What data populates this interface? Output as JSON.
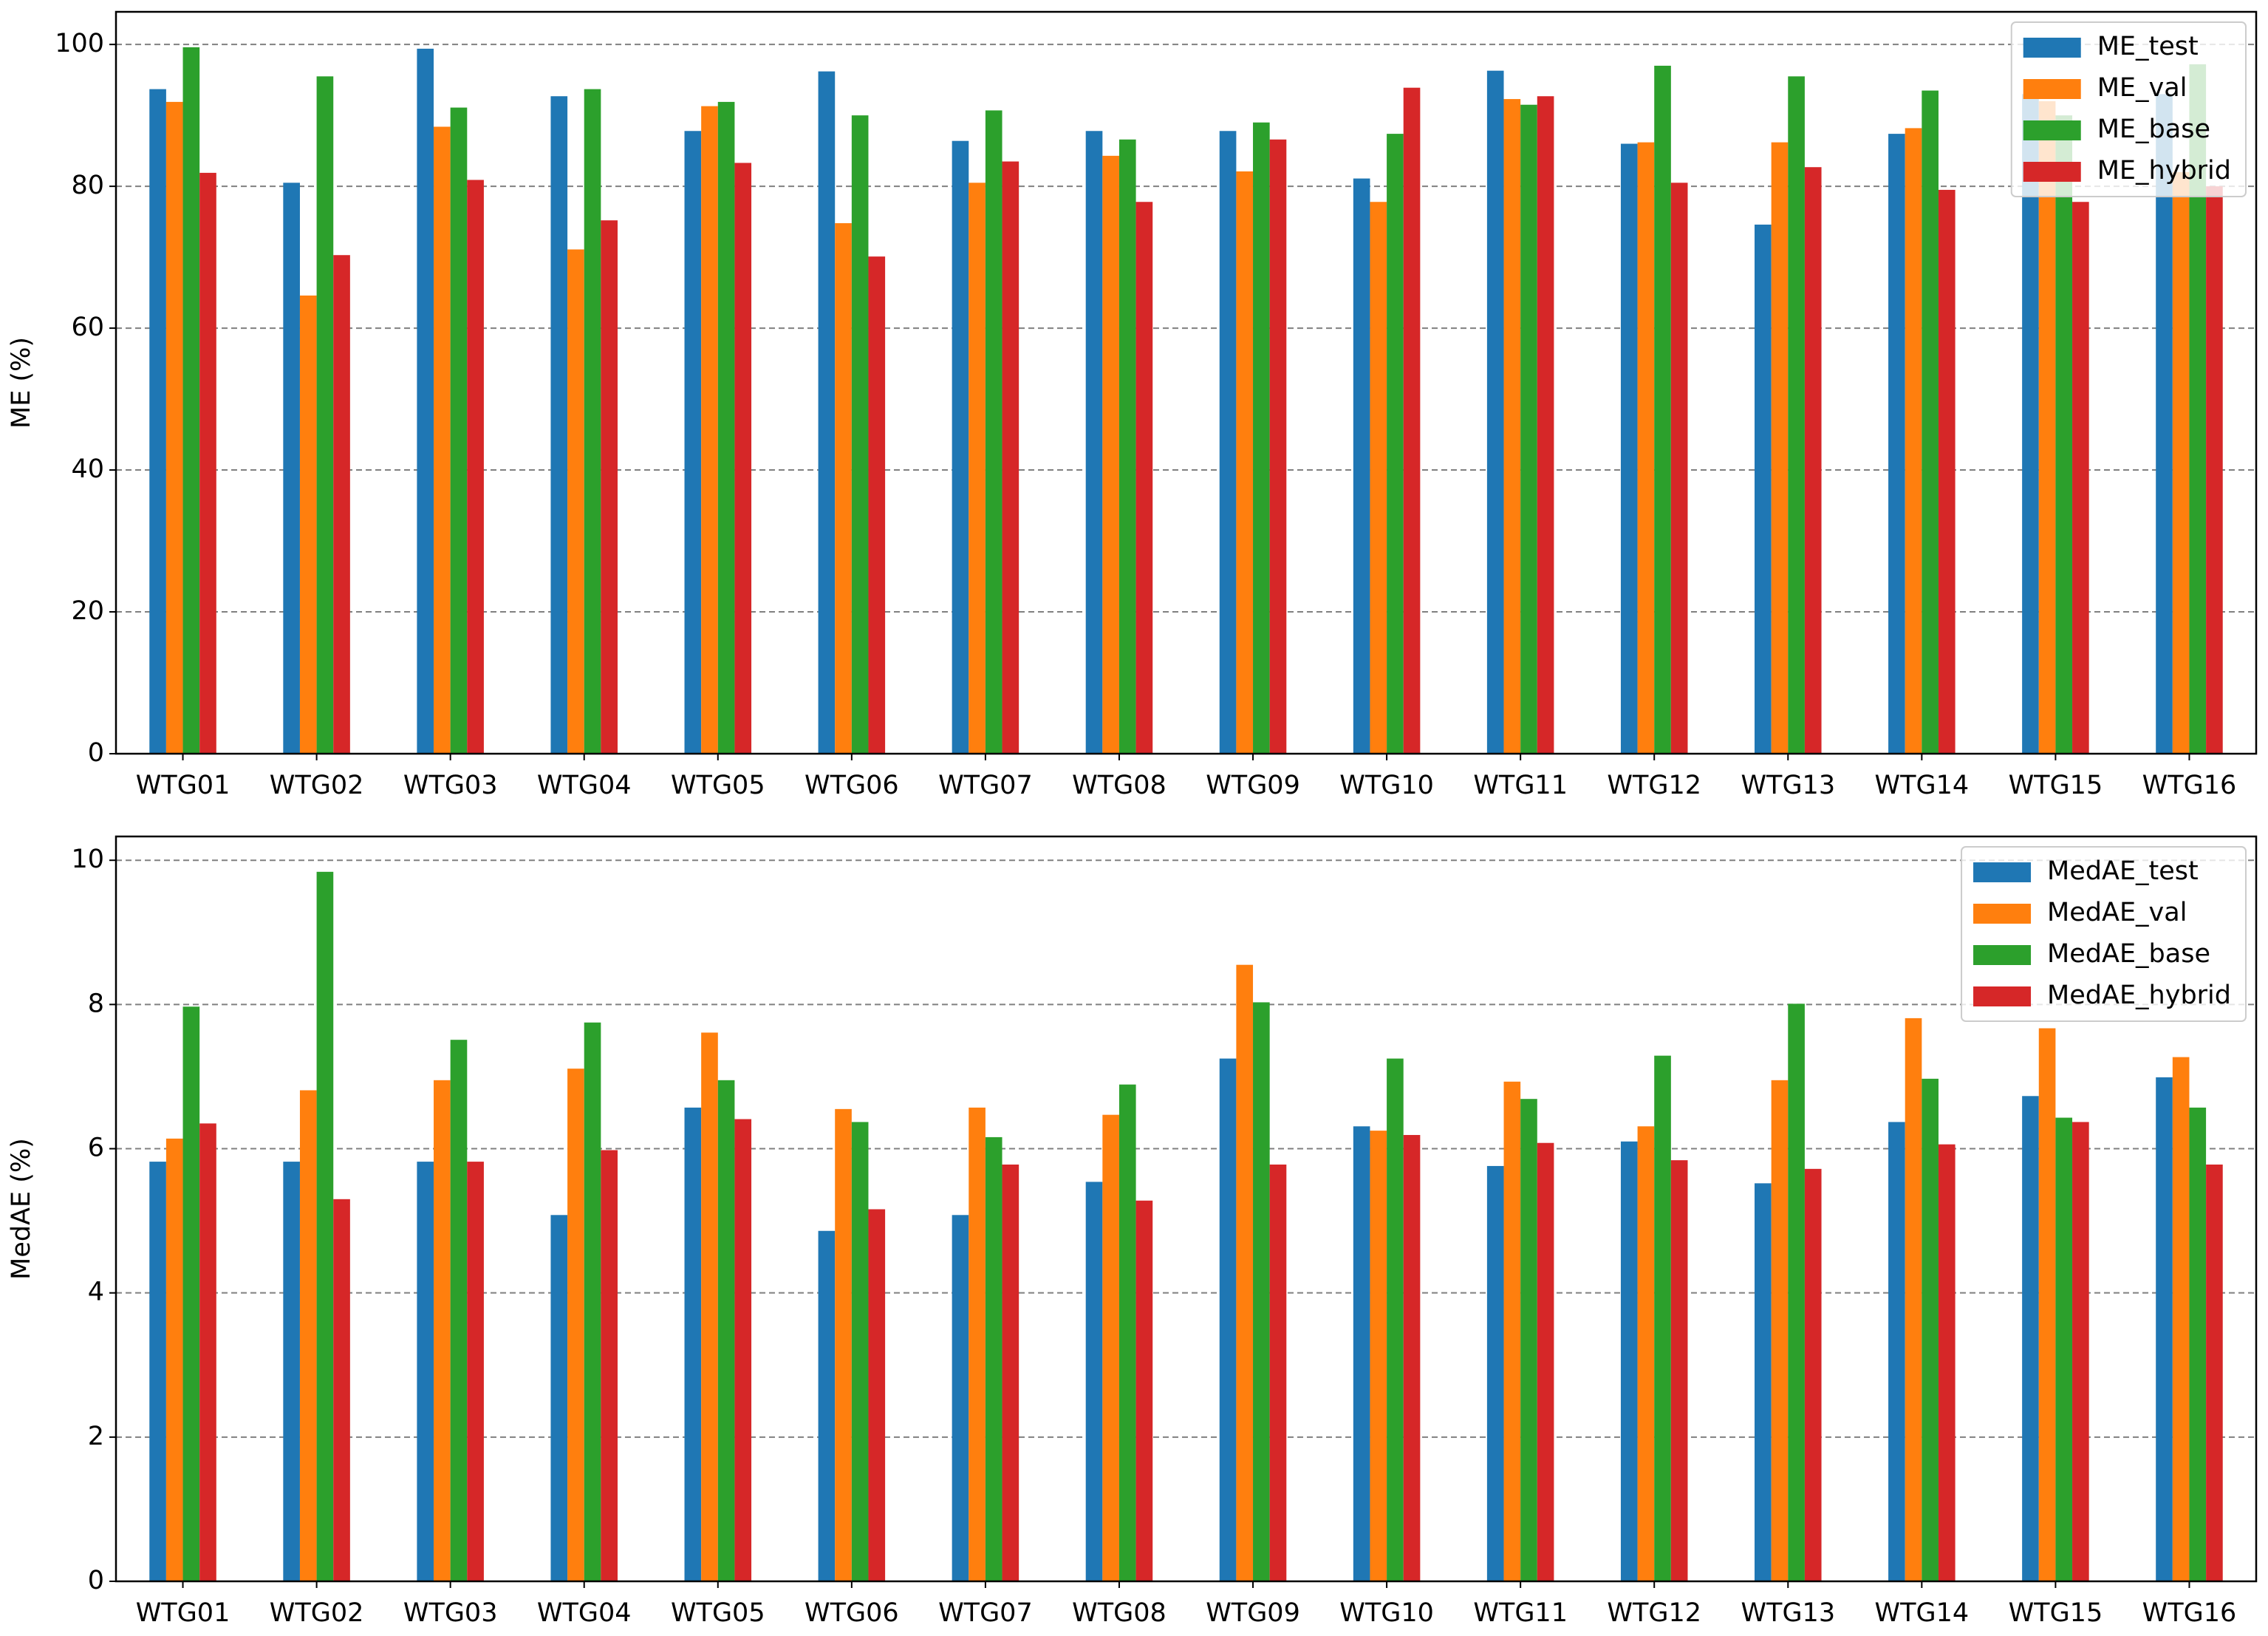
{
  "chart_data": [
    {
      "type": "bar",
      "ylabel": "ME (%)",
      "categories": [
        "WTG01",
        "WTG02",
        "WTG03",
        "WTG04",
        "WTG05",
        "WTG06",
        "WTG07",
        "WTG08",
        "WTG09",
        "WTG10",
        "WTG11",
        "WTG12",
        "WTG13",
        "WTG14",
        "WTG15",
        "WTG16"
      ],
      "series": [
        {
          "name": "ME_test",
          "color": "#1f77b4",
          "values": [
            93.7,
            80.5,
            99.4,
            92.7,
            87.8,
            96.2,
            86.4,
            87.8,
            87.8,
            81.1,
            96.3,
            86.0,
            74.6,
            87.4,
            93.0,
            93.0
          ]
        },
        {
          "name": "ME_val",
          "color": "#ff7f0e",
          "values": [
            91.9,
            64.6,
            88.4,
            71.1,
            91.3,
            74.8,
            80.5,
            84.3,
            82.1,
            77.8,
            92.3,
            86.2,
            86.2,
            88.2,
            92.0,
            82.0
          ]
        },
        {
          "name": "ME_base",
          "color": "#2ca02c",
          "values": [
            99.6,
            95.5,
            91.1,
            93.7,
            91.9,
            90.0,
            90.7,
            86.6,
            89.0,
            87.4,
            91.5,
            97.0,
            95.5,
            93.5,
            90.0,
            97.2
          ]
        },
        {
          "name": "ME_hybrid",
          "color": "#d62728",
          "values": [
            81.9,
            70.3,
            80.9,
            75.2,
            83.3,
            70.1,
            83.5,
            77.8,
            86.6,
            93.9,
            92.7,
            80.5,
            82.7,
            79.5,
            77.8,
            80.0
          ]
        }
      ],
      "ylim": [
        0,
        104.6
      ],
      "yticks": [
        0,
        20,
        40,
        60,
        80,
        100
      ],
      "grid": true,
      "legend": "upper right"
    },
    {
      "type": "bar",
      "ylabel": "MedAE (%)",
      "categories": [
        "WTG01",
        "WTG02",
        "WTG03",
        "WTG04",
        "WTG05",
        "WTG06",
        "WTG07",
        "WTG08",
        "WTG09",
        "WTG10",
        "WTG11",
        "WTG12",
        "WTG13",
        "WTG14",
        "WTG15",
        "WTG16"
      ],
      "series": [
        {
          "name": "MedAE_test",
          "color": "#1f77b4",
          "values": [
            5.82,
            5.82,
            5.82,
            5.08,
            6.57,
            4.86,
            5.08,
            5.54,
            7.25,
            6.31,
            5.76,
            6.1,
            5.52,
            6.37,
            6.73,
            6.99
          ]
        },
        {
          "name": "MedAE_val",
          "color": "#ff7f0e",
          "values": [
            6.14,
            6.81,
            6.95,
            7.11,
            7.61,
            6.55,
            6.57,
            6.47,
            8.55,
            6.25,
            6.93,
            6.31,
            6.95,
            7.81,
            7.67,
            7.27
          ]
        },
        {
          "name": "MedAE_base",
          "color": "#2ca02c",
          "values": [
            7.97,
            9.84,
            7.51,
            7.75,
            6.95,
            6.37,
            6.16,
            6.89,
            8.03,
            7.25,
            6.69,
            7.29,
            8.01,
            6.97,
            6.43,
            6.57
          ]
        },
        {
          "name": "MedAE_hybrid",
          "color": "#d62728",
          "values": [
            6.35,
            5.3,
            5.82,
            5.98,
            6.41,
            5.16,
            5.78,
            5.28,
            5.78,
            6.19,
            6.08,
            5.84,
            5.72,
            6.06,
            6.37,
            5.78
          ]
        }
      ],
      "ylim": [
        0,
        10.33
      ],
      "yticks": [
        0,
        2,
        4,
        6,
        8,
        10
      ],
      "grid": true,
      "legend": "upper right"
    }
  ]
}
